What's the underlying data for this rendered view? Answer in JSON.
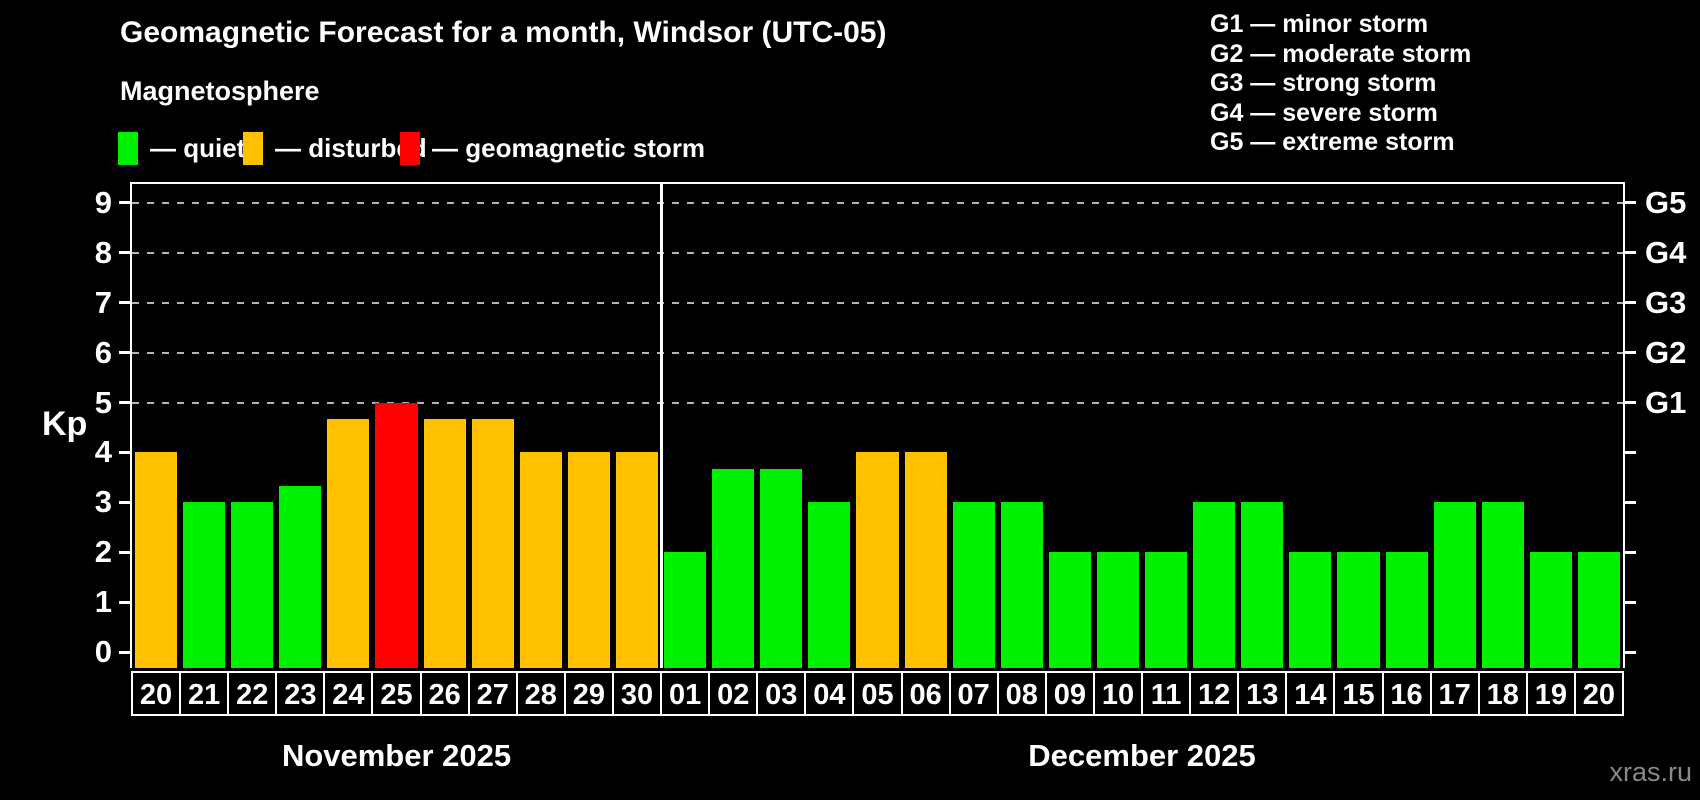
{
  "header": {
    "title": "Geomagnetic Forecast for a month, Windsor (UTC-05)",
    "subtitle": "Magnetosphere"
  },
  "legend": {
    "items": [
      {
        "key": "quiet",
        "label": "— quiet",
        "color": "#00f000"
      },
      {
        "key": "disturbed",
        "label": "— disturbed",
        "color": "#ffc000"
      },
      {
        "key": "storm",
        "label": "— geomagnetic storm",
        "color": "#ff0000"
      }
    ]
  },
  "g_scale_legend": [
    "G1 — minor storm",
    "G2 — moderate storm",
    "G3 — strong storm",
    "G4 — severe storm",
    "G5 — extreme storm"
  ],
  "watermark": "xras.ru",
  "chart_data": {
    "type": "bar",
    "ylabel": "Kp",
    "ylim": [
      -0.32,
      9.38
    ],
    "y_ticks": [
      0,
      1,
      2,
      3,
      4,
      5,
      6,
      7,
      8,
      9
    ],
    "gridlines_at": [
      5,
      6,
      7,
      8,
      9
    ],
    "grid_on": true,
    "right_axis_labels": [
      {
        "kp": 5,
        "label": "G1"
      },
      {
        "kp": 6,
        "label": "G2"
      },
      {
        "kp": 7,
        "label": "G3"
      },
      {
        "kp": 8,
        "label": "G4"
      },
      {
        "kp": 9,
        "label": "G5"
      }
    ],
    "months": [
      {
        "label": "November 2025",
        "days": [
          {
            "day": "20",
            "kp": 4.0,
            "status": "disturbed"
          },
          {
            "day": "21",
            "kp": 3.0,
            "status": "quiet"
          },
          {
            "day": "22",
            "kp": 3.0,
            "status": "quiet"
          },
          {
            "day": "23",
            "kp": 3.33,
            "status": "quiet"
          },
          {
            "day": "24",
            "kp": 4.67,
            "status": "disturbed"
          },
          {
            "day": "25",
            "kp": 5.0,
            "status": "storm"
          },
          {
            "day": "26",
            "kp": 4.67,
            "status": "disturbed"
          },
          {
            "day": "27",
            "kp": 4.67,
            "status": "disturbed"
          },
          {
            "day": "28",
            "kp": 4.0,
            "status": "disturbed"
          },
          {
            "day": "29",
            "kp": 4.0,
            "status": "disturbed"
          },
          {
            "day": "30",
            "kp": 4.0,
            "status": "disturbed"
          }
        ]
      },
      {
        "label": "December 2025",
        "days": [
          {
            "day": "01",
            "kp": 2.0,
            "status": "quiet"
          },
          {
            "day": "02",
            "kp": 3.67,
            "status": "quiet"
          },
          {
            "day": "03",
            "kp": 3.67,
            "status": "quiet"
          },
          {
            "day": "04",
            "kp": 3.0,
            "status": "quiet"
          },
          {
            "day": "05",
            "kp": 4.0,
            "status": "disturbed"
          },
          {
            "day": "06",
            "kp": 4.0,
            "status": "disturbed"
          },
          {
            "day": "07",
            "kp": 3.0,
            "status": "quiet"
          },
          {
            "day": "08",
            "kp": 3.0,
            "status": "quiet"
          },
          {
            "day": "09",
            "kp": 2.0,
            "status": "quiet"
          },
          {
            "day": "10",
            "kp": 2.0,
            "status": "quiet"
          },
          {
            "day": "11",
            "kp": 2.0,
            "status": "quiet"
          },
          {
            "day": "12",
            "kp": 3.0,
            "status": "quiet"
          },
          {
            "day": "13",
            "kp": 3.0,
            "status": "quiet"
          },
          {
            "day": "14",
            "kp": 2.0,
            "status": "quiet"
          },
          {
            "day": "15",
            "kp": 2.0,
            "status": "quiet"
          },
          {
            "day": "16",
            "kp": 2.0,
            "status": "quiet"
          },
          {
            "day": "17",
            "kp": 3.0,
            "status": "quiet"
          },
          {
            "day": "18",
            "kp": 3.0,
            "status": "quiet"
          },
          {
            "day": "19",
            "kp": 2.0,
            "status": "quiet"
          },
          {
            "day": "20",
            "kp": 2.0,
            "status": "quiet"
          }
        ]
      }
    ]
  }
}
